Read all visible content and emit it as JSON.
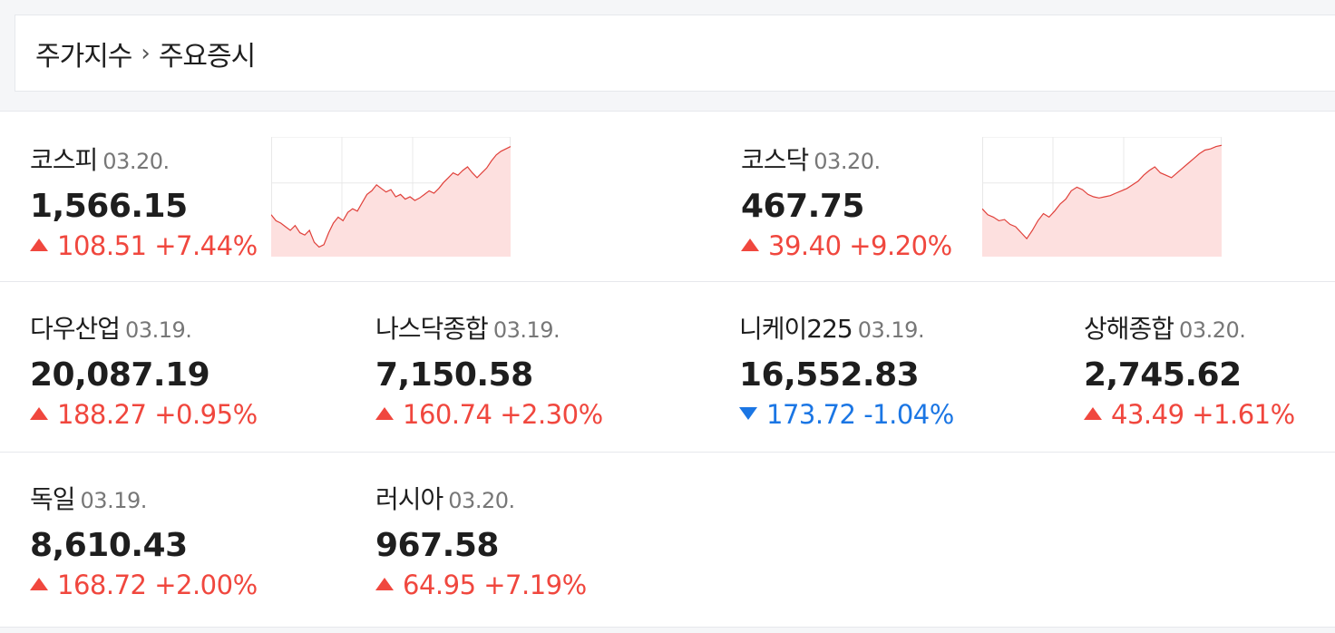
{
  "breadcrumb": {
    "parent": "주가지수",
    "current": "주요증시",
    "separator_icon": "chevron-right-icon"
  },
  "colors": {
    "up": "#f0473e",
    "down": "#1b76e4",
    "spark_line": "#e0403a",
    "spark_fill": "#fde0df",
    "grid": "#e8e8e8"
  },
  "indices": [
    {
      "name": "코스피",
      "date": "03.20.",
      "value": "1,566.15",
      "change": "108.51",
      "percent": "+7.44%",
      "direction": "up"
    },
    {
      "name": "코스닥",
      "date": "03.20.",
      "value": "467.75",
      "change": "39.40",
      "percent": "+9.20%",
      "direction": "up"
    },
    {
      "name": "다우산업",
      "date": "03.19.",
      "value": "20,087.19",
      "change": "188.27",
      "percent": "+0.95%",
      "direction": "up"
    },
    {
      "name": "나스닥종합",
      "date": "03.19.",
      "value": "7,150.58",
      "change": "160.74",
      "percent": "+2.30%",
      "direction": "up"
    },
    {
      "name": "니케이225",
      "date": "03.19.",
      "value": "16,552.83",
      "change": "173.72",
      "percent": "-1.04%",
      "direction": "down"
    },
    {
      "name": "상해종합",
      "date": "03.20.",
      "value": "2,745.62",
      "change": "43.49",
      "percent": "+1.61%",
      "direction": "up"
    },
    {
      "name": "독일",
      "date": "03.19.",
      "value": "8,610.43",
      "change": "168.72",
      "percent": "+2.00%",
      "direction": "up"
    },
    {
      "name": "러시아",
      "date": "03.20.",
      "value": "967.58",
      "change": "64.95",
      "percent": "+7.19%",
      "direction": "up"
    }
  ],
  "sparklines": {
    "kospi": [
      0.35,
      0.3,
      0.28,
      0.25,
      0.22,
      0.26,
      0.2,
      0.18,
      0.22,
      0.12,
      0.08,
      0.1,
      0.2,
      0.28,
      0.33,
      0.3,
      0.37,
      0.4,
      0.38,
      0.45,
      0.52,
      0.55,
      0.6,
      0.57,
      0.54,
      0.56,
      0.5,
      0.52,
      0.48,
      0.5,
      0.47,
      0.49,
      0.52,
      0.55,
      0.53,
      0.57,
      0.62,
      0.66,
      0.7,
      0.68,
      0.72,
      0.75,
      0.7,
      0.66,
      0.7,
      0.74,
      0.8,
      0.85,
      0.88,
      0.9,
      0.92
    ],
    "kosdaq": [
      0.4,
      0.35,
      0.33,
      0.3,
      0.31,
      0.27,
      0.25,
      0.2,
      0.15,
      0.22,
      0.3,
      0.36,
      0.33,
      0.38,
      0.44,
      0.48,
      0.55,
      0.58,
      0.56,
      0.52,
      0.5,
      0.49,
      0.5,
      0.51,
      0.53,
      0.55,
      0.57,
      0.6,
      0.63,
      0.68,
      0.72,
      0.75,
      0.7,
      0.68,
      0.66,
      0.7,
      0.74,
      0.78,
      0.82,
      0.86,
      0.89,
      0.9,
      0.92,
      0.93
    ]
  }
}
